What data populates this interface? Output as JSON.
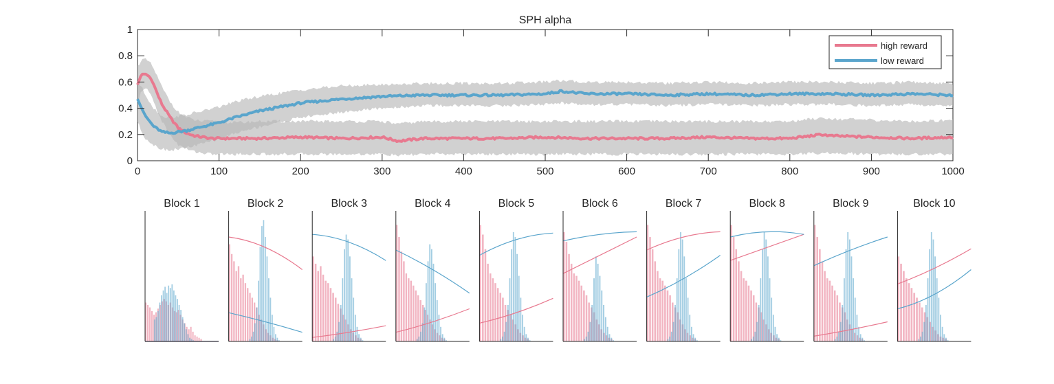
{
  "chart_data": [
    {
      "type": "line",
      "title": "SPH  alpha",
      "xlabel": "",
      "ylabel": "",
      "xlim": [
        0,
        1000
      ],
      "ylim": [
        0,
        1
      ],
      "xticks": [
        "0",
        "100",
        "200",
        "300",
        "400",
        "500",
        "600",
        "700",
        "800",
        "900",
        "1000"
      ],
      "yticks": [
        "0",
        "0.2",
        "0.4",
        "0.6",
        "0.8",
        "1"
      ],
      "grid": false,
      "legend": "top-right",
      "series": [
        {
          "name": "high reward",
          "color": "#e8798f",
          "x": [
            0,
            5,
            10,
            15,
            20,
            25,
            30,
            40,
            50,
            60,
            70,
            80,
            90,
            100,
            120,
            150,
            200,
            250,
            300,
            320,
            350,
            400,
            450,
            500,
            550,
            600,
            650,
            700,
            750,
            800,
            840,
            850,
            900,
            950,
            1000
          ],
          "mean": [
            0.58,
            0.66,
            0.66,
            0.64,
            0.58,
            0.5,
            0.43,
            0.33,
            0.25,
            0.21,
            0.19,
            0.18,
            0.17,
            0.17,
            0.17,
            0.17,
            0.18,
            0.17,
            0.18,
            0.15,
            0.17,
            0.17,
            0.17,
            0.18,
            0.17,
            0.17,
            0.17,
            0.18,
            0.17,
            0.17,
            0.2,
            0.19,
            0.18,
            0.17,
            0.18
          ],
          "lower": [
            0.42,
            0.54,
            0.55,
            0.52,
            0.45,
            0.37,
            0.3,
            0.2,
            0.12,
            0.09,
            0.07,
            0.06,
            0.05,
            0.05,
            0.05,
            0.05,
            0.05,
            0.05,
            0.05,
            0.04,
            0.05,
            0.05,
            0.05,
            0.05,
            0.05,
            0.05,
            0.05,
            0.05,
            0.05,
            0.05,
            0.06,
            0.06,
            0.05,
            0.05,
            0.05
          ],
          "upper": [
            0.72,
            0.77,
            0.77,
            0.75,
            0.7,
            0.63,
            0.56,
            0.45,
            0.37,
            0.33,
            0.31,
            0.3,
            0.3,
            0.3,
            0.29,
            0.3,
            0.3,
            0.3,
            0.3,
            0.28,
            0.3,
            0.3,
            0.3,
            0.3,
            0.3,
            0.3,
            0.3,
            0.3,
            0.3,
            0.3,
            0.33,
            0.32,
            0.31,
            0.3,
            0.31
          ]
        },
        {
          "name": "low reward",
          "color": "#5aa5cc",
          "x": [
            0,
            5,
            10,
            20,
            30,
            40,
            50,
            60,
            80,
            100,
            120,
            150,
            200,
            250,
            300,
            350,
            400,
            450,
            500,
            520,
            550,
            600,
            650,
            700,
            750,
            800,
            850,
            900,
            950,
            1000
          ],
          "mean": [
            0.47,
            0.4,
            0.34,
            0.26,
            0.22,
            0.21,
            0.22,
            0.23,
            0.26,
            0.29,
            0.33,
            0.38,
            0.44,
            0.47,
            0.49,
            0.5,
            0.5,
            0.5,
            0.51,
            0.53,
            0.51,
            0.51,
            0.5,
            0.51,
            0.5,
            0.51,
            0.51,
            0.5,
            0.51,
            0.5
          ],
          "lower": [
            0.3,
            0.22,
            0.17,
            0.12,
            0.09,
            0.08,
            0.09,
            0.1,
            0.13,
            0.17,
            0.21,
            0.26,
            0.33,
            0.37,
            0.4,
            0.42,
            0.42,
            0.42,
            0.43,
            0.44,
            0.43,
            0.43,
            0.42,
            0.43,
            0.42,
            0.43,
            0.43,
            0.42,
            0.43,
            0.42
          ],
          "upper": [
            0.6,
            0.56,
            0.5,
            0.4,
            0.34,
            0.33,
            0.34,
            0.35,
            0.38,
            0.41,
            0.45,
            0.49,
            0.54,
            0.57,
            0.58,
            0.59,
            0.59,
            0.59,
            0.6,
            0.61,
            0.6,
            0.6,
            0.59,
            0.6,
            0.59,
            0.6,
            0.6,
            0.59,
            0.6,
            0.59
          ]
        }
      ]
    },
    {
      "type": "bar",
      "subplots": [
        {
          "title": "Block 1",
          "high_hist": [
            0.32,
            0.3,
            0.28,
            0.25,
            0.22,
            0.24,
            0.27,
            0.3,
            0.33,
            0.35,
            0.33,
            0.3,
            0.32,
            0.28,
            0.25,
            0.24,
            0.26,
            0.22,
            0.18,
            0.15,
            0.12,
            0.1,
            0.12,
            0.08,
            0.05,
            0.04,
            0.03,
            0.02
          ],
          "low_hist": [
            0.18,
            0.2,
            0.25,
            0.32,
            0.38,
            0.42,
            0.45,
            0.4,
            0.46,
            0.44,
            0.47,
            0.42,
            0.38,
            0.35,
            0.3,
            0.26,
            0.2,
            0.15,
            0.1,
            0.06,
            0.03,
            0.02,
            0.01
          ],
          "high_curve": [
            0,
            0,
            0
          ],
          "low_curve": [
            0,
            0,
            0
          ]
        },
        {
          "title": "Block 2",
          "high_hist": [
            0.8,
            0.72,
            0.66,
            0.58,
            0.62,
            0.52,
            0.55,
            0.48,
            0.44,
            0.4,
            0.36,
            0.32,
            0.28,
            0.22,
            0.18,
            0.14,
            0.1,
            0.07,
            0.05,
            0.03,
            0.02,
            0.01
          ],
          "low_hist": [
            0.02,
            0.04,
            0.08,
            0.15,
            0.28,
            0.5,
            0.78,
            0.95,
            1.0,
            0.86,
            0.7,
            0.52,
            0.36,
            0.22,
            0.12,
            0.06,
            0.03,
            0.01
          ],
          "high_curve": [
            0.8,
            0.72,
            0.55
          ],
          "low_curve": [
            0.22,
            0.15,
            0.07
          ]
        },
        {
          "title": "Block 3",
          "high_hist": [
            0.7,
            0.64,
            0.58,
            0.62,
            0.55,
            0.5,
            0.48,
            0.44,
            0.4,
            0.36,
            0.31,
            0.27,
            0.22,
            0.18,
            0.14,
            0.1,
            0.07,
            0.05,
            0.03,
            0.02
          ],
          "low_hist": [
            0.02,
            0.04,
            0.08,
            0.16,
            0.3,
            0.52,
            0.76,
            0.88,
            0.84,
            0.7,
            0.52,
            0.36,
            0.22,
            0.12,
            0.06,
            0.03,
            0.01
          ],
          "high_curve": [
            0.03,
            0.07,
            0.12
          ],
          "low_curve": [
            0.82,
            0.76,
            0.62
          ]
        },
        {
          "title": "Block 4",
          "high_hist": [
            0.96,
            0.86,
            0.74,
            0.66,
            0.56,
            0.52,
            0.5,
            0.46,
            0.42,
            0.38,
            0.34,
            0.3,
            0.26,
            0.22,
            0.18,
            0.14,
            0.1,
            0.07,
            0.05,
            0.03,
            0.02
          ],
          "low_hist": [
            0.02,
            0.04,
            0.08,
            0.15,
            0.28,
            0.48,
            0.66,
            0.8,
            0.76,
            0.64,
            0.48,
            0.34,
            0.22,
            0.12,
            0.06,
            0.03,
            0.01
          ],
          "high_curve": [
            0.07,
            0.15,
            0.25
          ],
          "low_curve": [
            0.7,
            0.55,
            0.37
          ]
        },
        {
          "title": "Block 5",
          "high_hist": [
            0.96,
            0.88,
            0.76,
            0.64,
            0.56,
            0.52,
            0.48,
            0.44,
            0.4,
            0.36,
            0.3,
            0.26,
            0.22,
            0.18,
            0.14,
            0.1,
            0.07,
            0.05,
            0.03,
            0.02
          ],
          "low_hist": [
            0.02,
            0.04,
            0.08,
            0.16,
            0.3,
            0.52,
            0.76,
            0.9,
            0.86,
            0.72,
            0.54,
            0.36,
            0.22,
            0.12,
            0.06,
            0.03,
            0.01
          ],
          "high_curve": [
            0.14,
            0.22,
            0.33
          ],
          "low_curve": [
            0.66,
            0.78,
            0.83
          ]
        },
        {
          "title": "Block 6",
          "high_hist": [
            0.9,
            0.82,
            0.72,
            0.64,
            0.56,
            0.54,
            0.5,
            0.46,
            0.42,
            0.38,
            0.32,
            0.28,
            0.24,
            0.18,
            0.14,
            0.1,
            0.07,
            0.05,
            0.03,
            0.02
          ],
          "low_hist": [
            0.02,
            0.04,
            0.08,
            0.16,
            0.3,
            0.52,
            0.7,
            0.64,
            0.54,
            0.42,
            0.3,
            0.2,
            0.12,
            0.06,
            0.03,
            0.01
          ],
          "high_curve": [
            0.52,
            0.66,
            0.8
          ],
          "low_curve": [
            0.77,
            0.82,
            0.84
          ]
        },
        {
          "title": "Block 7",
          "high_hist": [
            0.96,
            0.86,
            0.76,
            0.66,
            0.58,
            0.52,
            0.5,
            0.46,
            0.42,
            0.38,
            0.32,
            0.28,
            0.24,
            0.18,
            0.14,
            0.1,
            0.07,
            0.05,
            0.03,
            0.02
          ],
          "low_hist": [
            0.02,
            0.04,
            0.08,
            0.16,
            0.3,
            0.52,
            0.76,
            0.9,
            0.84,
            0.7,
            0.52,
            0.36,
            0.22,
            0.12,
            0.06,
            0.03,
            0.01
          ],
          "high_curve": [
            0.7,
            0.8,
            0.84
          ],
          "low_curve": [
            0.34,
            0.48,
            0.66
          ]
        },
        {
          "title": "Block 8",
          "high_hist": [
            0.96,
            0.86,
            0.76,
            0.66,
            0.58,
            0.52,
            0.5,
            0.46,
            0.42,
            0.38,
            0.32,
            0.28,
            0.24,
            0.18,
            0.14,
            0.1,
            0.07,
            0.05,
            0.03,
            0.02
          ],
          "low_hist": [
            0.02,
            0.04,
            0.08,
            0.16,
            0.3,
            0.52,
            0.76,
            0.9,
            0.84,
            0.7,
            0.52,
            0.36,
            0.22,
            0.12,
            0.06,
            0.03,
            0.01
          ],
          "high_curve": [
            0.62,
            0.72,
            0.82
          ],
          "low_curve": [
            0.8,
            0.84,
            0.82
          ]
        },
        {
          "title": "Block 9",
          "high_hist": [
            0.96,
            0.86,
            0.76,
            0.66,
            0.58,
            0.52,
            0.5,
            0.46,
            0.42,
            0.38,
            0.32,
            0.28,
            0.24,
            0.18,
            0.14,
            0.1,
            0.07,
            0.05,
            0.03,
            0.02
          ],
          "low_hist": [
            0.02,
            0.04,
            0.08,
            0.16,
            0.3,
            0.52,
            0.76,
            0.9,
            0.84,
            0.7,
            0.52,
            0.36,
            0.22,
            0.12,
            0.06,
            0.03,
            0.01
          ],
          "high_curve": [
            0.04,
            0.09,
            0.15
          ],
          "low_curve": [
            0.58,
            0.7,
            0.8
          ]
        },
        {
          "title": "Block 10",
          "high_hist": [
            0.7,
            0.64,
            0.58,
            0.52,
            0.48,
            0.44,
            0.4,
            0.36,
            0.32,
            0.28,
            0.24,
            0.2,
            0.16,
            0.12,
            0.09,
            0.06,
            0.04,
            0.03,
            0.02
          ],
          "low_hist": [
            0.02,
            0.04,
            0.08,
            0.16,
            0.3,
            0.52,
            0.76,
            0.9,
            0.84,
            0.7,
            0.52,
            0.36,
            0.22,
            0.12,
            0.06,
            0.03,
            0.01
          ],
          "high_curve": [
            0.44,
            0.56,
            0.71
          ],
          "low_curve": [
            0.25,
            0.36,
            0.55
          ]
        }
      ]
    }
  ]
}
